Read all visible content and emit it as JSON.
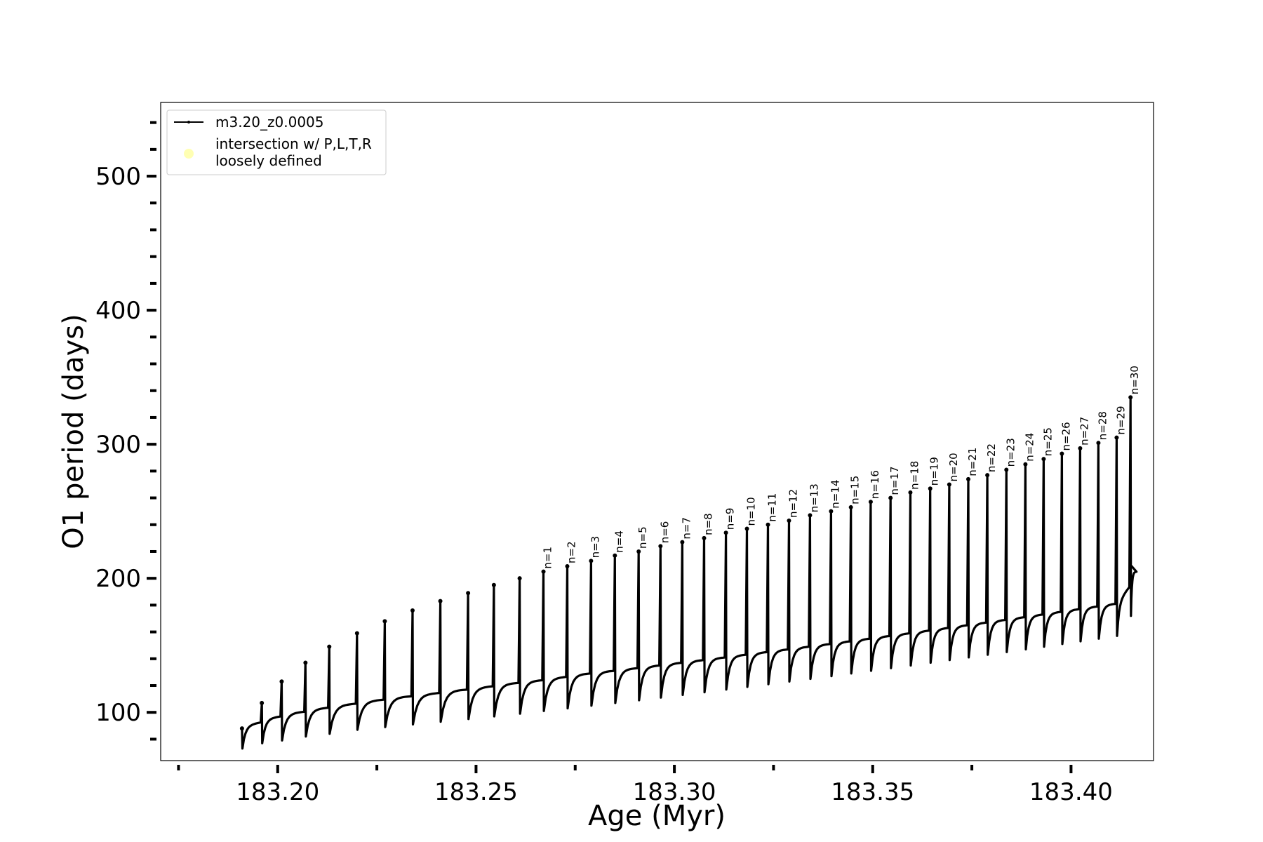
{
  "chart_data": {
    "type": "line",
    "title": "",
    "xlabel": "Age (Myr)",
    "ylabel": "O1 period (days)",
    "xlim": [
      183.1705,
      183.4208
    ],
    "ylim": [
      64,
      555
    ],
    "x_ticks": [
      183.2,
      183.25,
      183.3,
      183.35,
      183.4
    ],
    "x_tick_labels": [
      "183.20",
      "183.25",
      "183.30",
      "183.35",
      "183.40"
    ],
    "x_minor_ticks": [
      183.175,
      183.225,
      183.275,
      183.325,
      183.375,
      183.425
    ],
    "y_ticks": [
      100,
      200,
      300,
      400,
      500
    ],
    "y_tick_labels": [
      "100",
      "200",
      "300",
      "400",
      "500"
    ],
    "y_minor_step": 20,
    "grid": false,
    "legend": {
      "placement": "upper-left",
      "entries": [
        {
          "label": "m3.20_z0.0005",
          "marker": "line",
          "color": "#000000"
        },
        {
          "label_lines": [
            "intersection w/ P,L,T,R",
            "loosely defined"
          ],
          "marker": "circle",
          "color": "#ffffb3"
        }
      ]
    },
    "series": [
      {
        "name": "m3.20_z0.0005",
        "color": "#000000",
        "start": {
          "x": 183.191,
          "y": 88
        },
        "end": {
          "x": 183.415,
          "y": 210
        },
        "cycles": [
          {
            "x": 183.191,
            "peak": 88,
            "min": 73,
            "plateau": 90
          },
          {
            "x": 183.196,
            "peak": 107,
            "min": 77,
            "plateau": 95
          },
          {
            "x": 183.201,
            "peak": 123,
            "min": 79,
            "plateau": 99
          },
          {
            "x": 183.207,
            "peak": 137,
            "min": 82,
            "plateau": 102
          },
          {
            "x": 183.213,
            "peak": 149,
            "min": 84,
            "plateau": 105
          },
          {
            "x": 183.22,
            "peak": 159,
            "min": 87,
            "plateau": 108
          },
          {
            "x": 183.227,
            "peak": 168,
            "min": 89,
            "plateau": 111
          },
          {
            "x": 183.234,
            "peak": 176,
            "min": 91,
            "plateau": 113
          },
          {
            "x": 183.241,
            "peak": 183,
            "min": 93,
            "plateau": 116
          },
          {
            "x": 183.248,
            "peak": 189,
            "min": 95,
            "plateau": 118
          },
          {
            "x": 183.2545,
            "peak": 195,
            "min": 97,
            "plateau": 121
          },
          {
            "x": 183.261,
            "peak": 200,
            "min": 99,
            "plateau": 123
          },
          {
            "x": 183.267,
            "peak": 205,
            "min": 101,
            "plateau": 125,
            "label": "n=1"
          },
          {
            "x": 183.273,
            "peak": 209,
            "min": 103,
            "plateau": 128,
            "label": "n=2"
          },
          {
            "x": 183.279,
            "peak": 213,
            "min": 105,
            "plateau": 130,
            "label": "n=3"
          },
          {
            "x": 183.285,
            "peak": 217,
            "min": 107,
            "plateau": 132,
            "label": "n=4"
          },
          {
            "x": 183.291,
            "peak": 220,
            "min": 109,
            "plateau": 134,
            "label": "n=5"
          },
          {
            "x": 183.2965,
            "peak": 224,
            "min": 111,
            "plateau": 136,
            "label": "n=6"
          },
          {
            "x": 183.302,
            "peak": 227,
            "min": 113,
            "plateau": 138,
            "label": "n=7"
          },
          {
            "x": 183.3075,
            "peak": 230,
            "min": 115,
            "plateau": 140,
            "label": "n=8"
          },
          {
            "x": 183.313,
            "peak": 234,
            "min": 117,
            "plateau": 142,
            "label": "n=9"
          },
          {
            "x": 183.3183,
            "peak": 237,
            "min": 119,
            "plateau": 144,
            "label": "n=10"
          },
          {
            "x": 183.3236,
            "peak": 240,
            "min": 121,
            "plateau": 146,
            "label": "n=11"
          },
          {
            "x": 183.3289,
            "peak": 243,
            "min": 123,
            "plateau": 148,
            "label": "n=12"
          },
          {
            "x": 183.3342,
            "peak": 247,
            "min": 125,
            "plateau": 150,
            "label": "n=13"
          },
          {
            "x": 183.3395,
            "peak": 250,
            "min": 127,
            "plateau": 152,
            "label": "n=14"
          },
          {
            "x": 183.3445,
            "peak": 253,
            "min": 129,
            "plateau": 154,
            "label": "n=15"
          },
          {
            "x": 183.3495,
            "peak": 257,
            "min": 131,
            "plateau": 156,
            "label": "n=16"
          },
          {
            "x": 183.3545,
            "peak": 260,
            "min": 133,
            "plateau": 158,
            "label": "n=17"
          },
          {
            "x": 183.3595,
            "peak": 264,
            "min": 135,
            "plateau": 160,
            "label": "n=18"
          },
          {
            "x": 183.3645,
            "peak": 267,
            "min": 137,
            "plateau": 162,
            "label": "n=19"
          },
          {
            "x": 183.3693,
            "peak": 270,
            "min": 139,
            "plateau": 164,
            "label": "n=20"
          },
          {
            "x": 183.3741,
            "peak": 274,
            "min": 141,
            "plateau": 166,
            "label": "n=21"
          },
          {
            "x": 183.3789,
            "peak": 277,
            "min": 143,
            "plateau": 168,
            "label": "n=22"
          },
          {
            "x": 183.3837,
            "peak": 281,
            "min": 145,
            "plateau": 170,
            "label": "n=23"
          },
          {
            "x": 183.3885,
            "peak": 285,
            "min": 147,
            "plateau": 172,
            "label": "n=24"
          },
          {
            "x": 183.3931,
            "peak": 289,
            "min": 149,
            "plateau": 174,
            "label": "n=25"
          },
          {
            "x": 183.3977,
            "peak": 293,
            "min": 151,
            "plateau": 176,
            "label": "n=26"
          },
          {
            "x": 183.4023,
            "peak": 297,
            "min": 153,
            "plateau": 178,
            "label": "n=27"
          },
          {
            "x": 183.4069,
            "peak": 301,
            "min": 155,
            "plateau": 180,
            "label": "n=28"
          },
          {
            "x": 183.4115,
            "peak": 305,
            "min": 157,
            "plateau": 182,
            "label": "n=29"
          },
          {
            "x": 183.415,
            "peak": 335,
            "min": 172,
            "plateau": 205,
            "label": "n=30"
          }
        ]
      }
    ]
  }
}
